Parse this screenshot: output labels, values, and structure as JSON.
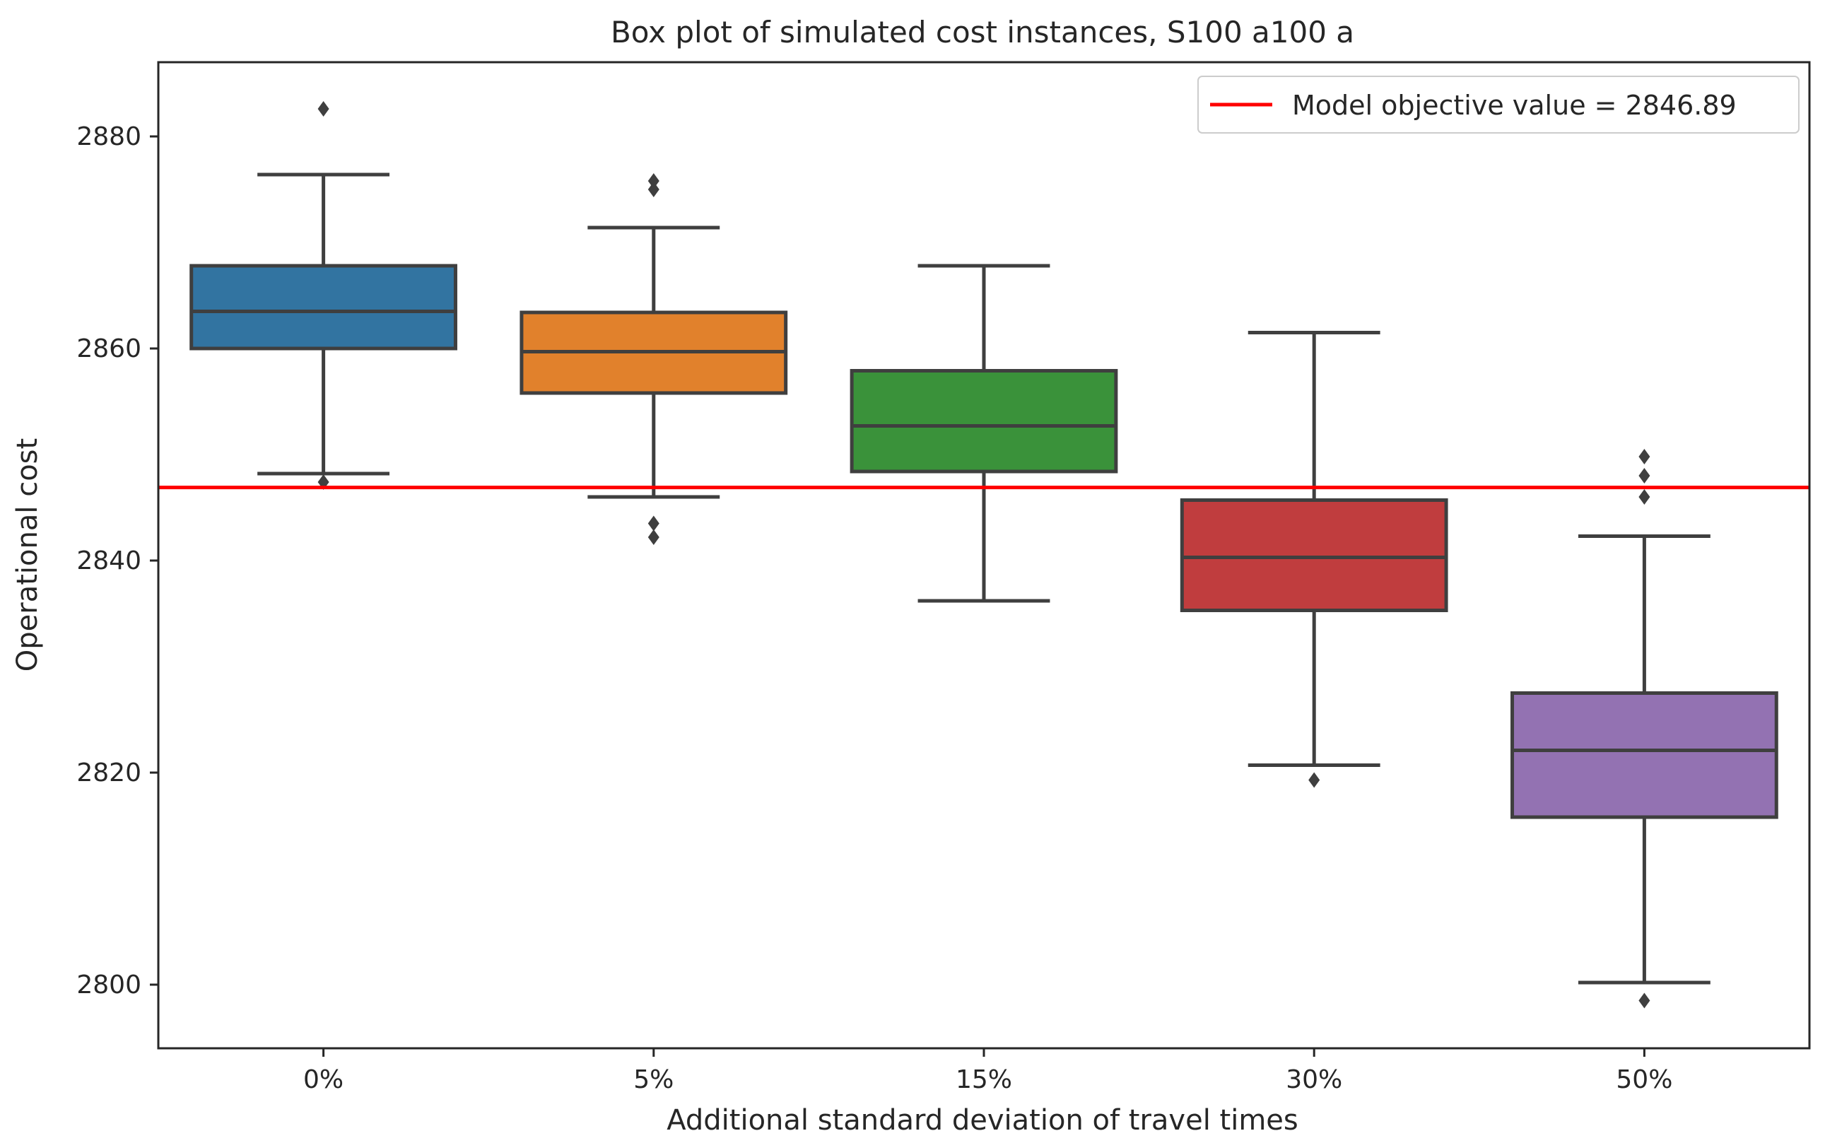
{
  "chart_data": {
    "type": "box",
    "title": "Box plot of simulated cost instances, S100 a100 a",
    "xlabel": "Additional standard deviation of travel times",
    "ylabel": "Operational cost",
    "ylim": [
      2794,
      2887
    ],
    "yticks": [
      2800,
      2820,
      2840,
      2860,
      2880
    ],
    "yticklabels": [
      "2800",
      "2820",
      "2840",
      "2860",
      "2880"
    ],
    "categories": [
      "0%",
      "5%",
      "15%",
      "30%",
      "50%"
    ],
    "boxes": [
      {
        "category": "0%",
        "color": "#3274a1",
        "whisker_low": 2848.2,
        "q1": 2860.0,
        "median": 2863.5,
        "q3": 2867.8,
        "whisker_high": 2876.4,
        "outliers": [
          2882.6,
          2847.4
        ]
      },
      {
        "category": "5%",
        "color": "#e1812c",
        "whisker_low": 2846.0,
        "q1": 2855.8,
        "median": 2859.7,
        "q3": 2863.4,
        "whisker_high": 2871.4,
        "outliers": [
          2875.8,
          2875.0,
          2843.5,
          2842.2
        ]
      },
      {
        "category": "15%",
        "color": "#3a923a",
        "whisker_low": 2836.2,
        "q1": 2848.4,
        "median": 2852.7,
        "q3": 2857.9,
        "whisker_high": 2867.8,
        "outliers": []
      },
      {
        "category": "30%",
        "color": "#c03d3e",
        "whisker_low": 2820.7,
        "q1": 2835.3,
        "median": 2840.3,
        "q3": 2845.7,
        "whisker_high": 2861.5,
        "outliers": [
          2819.3
        ]
      },
      {
        "category": "50%",
        "color": "#9372b2",
        "whisker_low": 2800.2,
        "q1": 2815.8,
        "median": 2822.1,
        "q3": 2827.5,
        "whisker_high": 2842.3,
        "outliers": [
          2849.8,
          2848.0,
          2846.0,
          2798.5
        ]
      }
    ],
    "reference_line": {
      "value": 2846.89,
      "color": "#ff0000",
      "label": "Model objective value = 2846.89"
    },
    "legend": {
      "position": "top-right"
    }
  }
}
